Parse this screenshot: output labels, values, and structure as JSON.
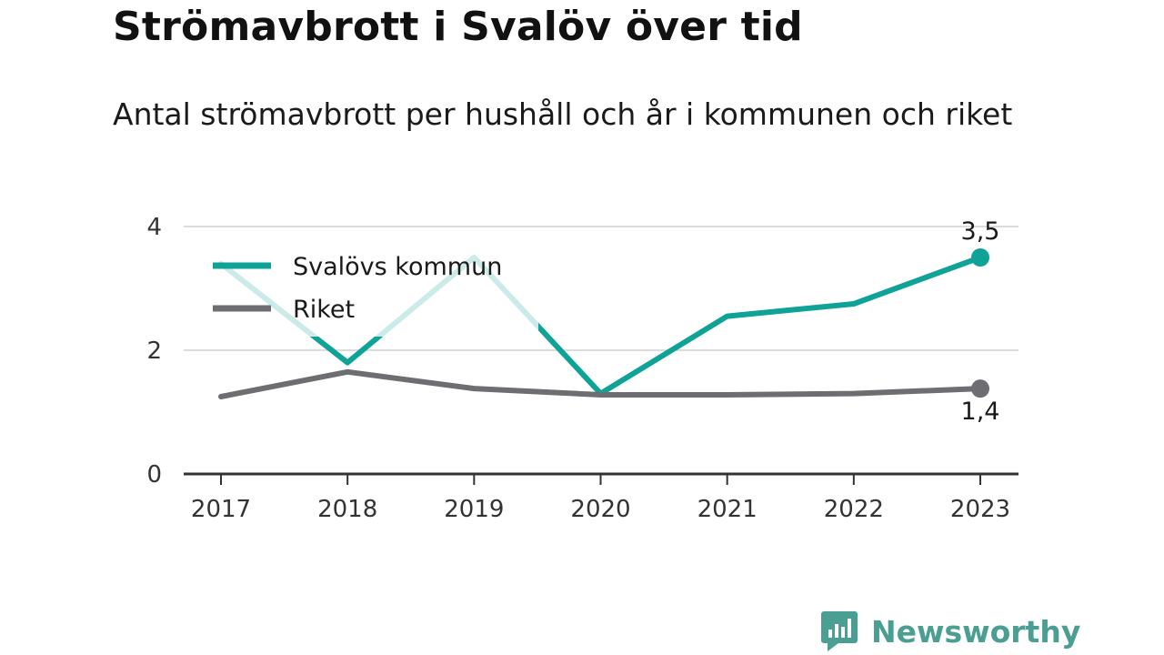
{
  "chart_data": {
    "type": "line",
    "title": "Strömavbrott i Svalöv över tid",
    "subtitle": "Antal strömavbrott per hushåll och år i kommunen och riket",
    "x": [
      "2017",
      "2018",
      "2019",
      "2020",
      "2021",
      "2022",
      "2023"
    ],
    "series": [
      {
        "name": "Svalövs kommun",
        "color": "#0fa397",
        "values": [
          3.4,
          1.8,
          3.5,
          1.3,
          2.55,
          2.75,
          3.5
        ],
        "end_label": "3,5"
      },
      {
        "name": "Riket",
        "color": "#6e6d72",
        "values": [
          1.25,
          1.65,
          1.38,
          1.28,
          1.28,
          1.3,
          1.38
        ],
        "end_label": "1,4"
      }
    ],
    "yticks": [
      "0",
      "2",
      "4"
    ],
    "ylim": [
      0,
      4
    ],
    "grid": true,
    "legend": "top-left"
  },
  "brand": {
    "name": "Newsworthy",
    "icon": "newsworthy-logo-icon",
    "color": "#4a9e92"
  }
}
